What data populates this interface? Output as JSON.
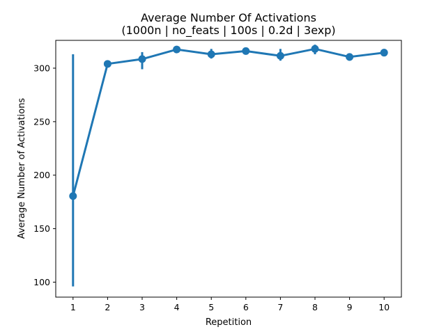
{
  "chart_data": {
    "type": "line",
    "title": "Average Number Of Activations",
    "subtitle": "(1000n | no_feats | 100s | 0.2d | 3exp)",
    "xlabel": "Repetition",
    "ylabel": "Average Number of Activations",
    "categories": [
      "1",
      "2",
      "3",
      "4",
      "5",
      "6",
      "7",
      "8",
      "9",
      "10"
    ],
    "series": [
      {
        "values": [
          180.5,
          304,
          308.5,
          317.5,
          313,
          316,
          311.5,
          318,
          310.5,
          314.5
        ],
        "err_low": [
          96,
          302,
          299,
          316,
          309,
          314,
          307,
          313,
          307,
          311
        ],
        "err_high": [
          313,
          306,
          315,
          319,
          318,
          318,
          318,
          322,
          314,
          318
        ],
        "color": "#1f77b4"
      }
    ],
    "yticks": [
      100,
      150,
      200,
      250,
      300
    ],
    "ylim": [
      86,
      326
    ],
    "grid": false,
    "legend": "none"
  }
}
